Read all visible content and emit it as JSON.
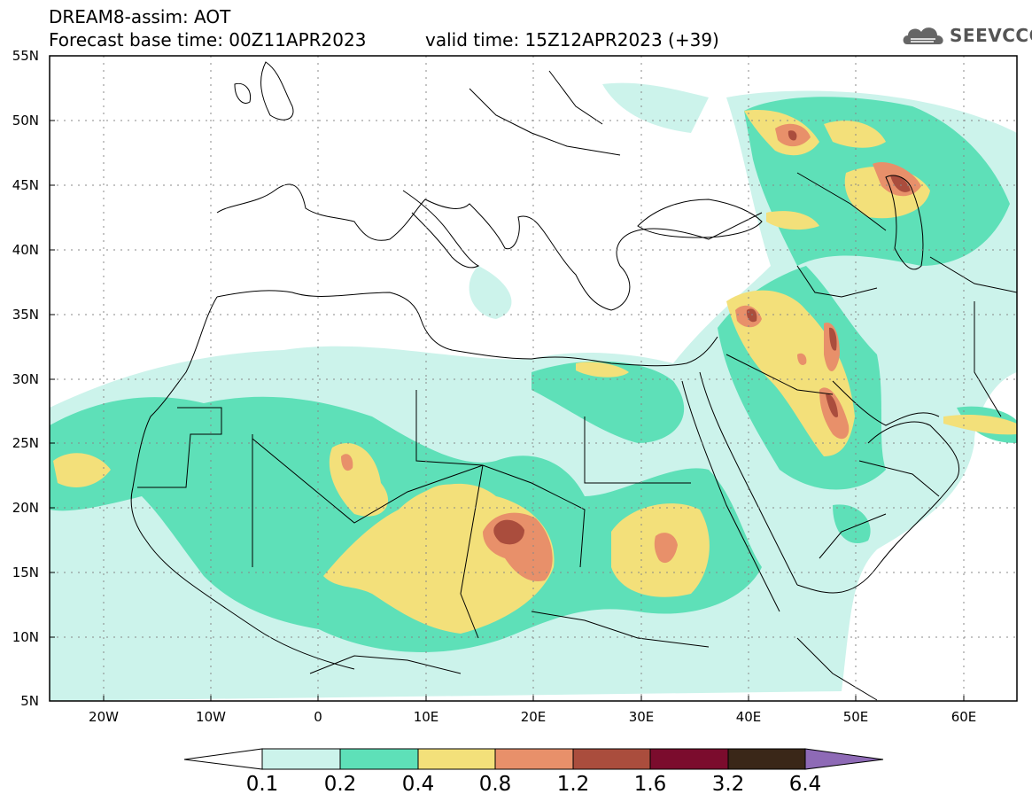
{
  "header": {
    "title_line1": "DREAM8-assim: AOT",
    "title_line2": "Forecast base time: 00Z11APR2023",
    "valid_time": "valid time: 15Z12APR2023 (+39)",
    "logo_text": "SEEVCCC",
    "logo_icon": "cloud-icon"
  },
  "map": {
    "lat_labels": [
      "55N",
      "50N",
      "45N",
      "40N",
      "35N",
      "30N",
      "25N",
      "20N",
      "15N",
      "10N",
      "5N"
    ],
    "lon_labels": [
      "20W",
      "10W",
      "0",
      "10E",
      "20E",
      "30E",
      "40E",
      "50E",
      "60E"
    ],
    "lat_range": [
      5,
      55
    ],
    "lon_range": [
      -25,
      65
    ],
    "grid": "dotted"
  },
  "colorbar": {
    "levels": [
      "0.1",
      "0.2",
      "0.4",
      "0.8",
      "1.2",
      "1.6",
      "3.2",
      "6.4"
    ],
    "colors": [
      "#ccf3eb",
      "#5ee0b8",
      "#f3e07a",
      "#e8906a",
      "#aa4d3d",
      "#7b0c2d",
      "#3a2718"
    ],
    "under_color": "#ffffff",
    "over_color": "#8e6ab6"
  }
}
